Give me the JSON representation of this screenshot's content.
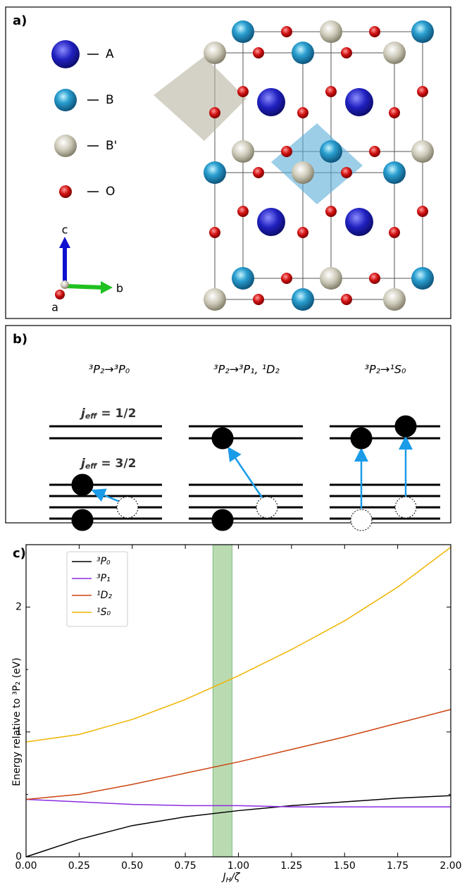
{
  "panel_a": {
    "label": "a)",
    "legend": [
      "A",
      "B",
      "B'",
      "O"
    ],
    "axes": [
      "c",
      "b",
      "a"
    ]
  },
  "panel_b": {
    "label": "b)",
    "transitions": [
      "³P₂→³P₀",
      "³P₂→³P₁, ¹D₂",
      "³P₂→¹S₀"
    ],
    "levels": [
      {
        "main": "j",
        "sub": "eff",
        "rest": " = 1/2"
      },
      {
        "main": "j",
        "sub": "eff",
        "rest": " = 3/2"
      }
    ]
  },
  "chart_data": {
    "type": "line",
    "panel_label": "c)",
    "x": [
      0,
      0.25,
      0.5,
      0.75,
      1,
      1.25,
      1.5,
      1.75,
      2
    ],
    "series": [
      {
        "name": "³P₀",
        "color": "#000000",
        "values": [
          0,
          0.14,
          0.25,
          0.32,
          0.37,
          0.41,
          0.44,
          0.47,
          0.49
        ]
      },
      {
        "name": "³P₁",
        "color": "#8a2be2",
        "values": [
          0.46,
          0.44,
          0.42,
          0.41,
          0.41,
          0.4,
          0.4,
          0.4,
          0.4
        ]
      },
      {
        "name": "¹D₂",
        "color": "#cc4411",
        "values": [
          0.46,
          0.5,
          0.58,
          0.67,
          0.76,
          0.86,
          0.96,
          1.07,
          1.18
        ]
      },
      {
        "name": "¹S₀",
        "color": "#f0b400",
        "values": [
          0.92,
          0.98,
          1.1,
          1.26,
          1.45,
          1.66,
          1.89,
          2.16,
          2.48
        ]
      }
    ],
    "xlim": [
      0,
      2
    ],
    "ylim": [
      0,
      2.5
    ],
    "xticks": [
      {
        "value": 0,
        "label": "0.00"
      },
      {
        "value": 0.25,
        "label": "0.25"
      },
      {
        "value": 0.5,
        "label": "0.50"
      },
      {
        "value": 0.75,
        "label": "0.75"
      },
      {
        "value": 1,
        "label": "1.00"
      },
      {
        "value": 1.25,
        "label": "1.25"
      },
      {
        "value": 1.5,
        "label": "1.50"
      },
      {
        "value": 1.75,
        "label": "1.75"
      },
      {
        "value": 2,
        "label": "2.00"
      }
    ],
    "yticks": [
      0,
      1,
      2
    ],
    "yticks_minor": [
      0.5,
      1.5
    ],
    "x_label": {
      "main": "J",
      "sub": "H",
      "rest": "/ζ"
    },
    "y_label": "Energy relative to ³P₂ (eV)",
    "shaded_region": {
      "x": [
        0.88,
        0.97
      ],
      "color": "#a9d3a0"
    },
    "legend": "upper left"
  }
}
